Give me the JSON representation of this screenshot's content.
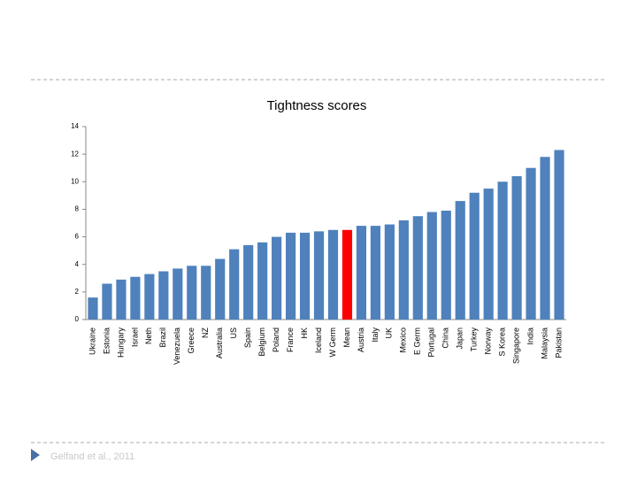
{
  "chart_data": {
    "type": "bar",
    "title": "Tightness scores",
    "categories": [
      "Ukraine",
      "Estonia",
      "Hungary",
      "Israel",
      "Neth",
      "Brazil",
      "Venezuela",
      "Greece",
      "NZ",
      "Australia",
      "US",
      "Spain",
      "Belgium",
      "Poland",
      "France",
      "HK",
      "Iceland",
      "W Germ",
      "Mean",
      "Austria",
      "Italy",
      "UK",
      "Mexico",
      "E Germ",
      "Portugal",
      "China",
      "Japan",
      "Turkey",
      "Norway",
      "S Korea",
      "Singapore",
      "India",
      "Malaysia",
      "Pakistan"
    ],
    "values": [
      1.6,
      2.6,
      2.9,
      3.1,
      3.3,
      3.5,
      3.7,
      3.9,
      3.9,
      4.4,
      5.1,
      5.4,
      5.6,
      6.0,
      6.3,
      6.3,
      6.4,
      6.5,
      6.5,
      6.8,
      6.8,
      6.9,
      7.2,
      7.5,
      7.8,
      7.9,
      8.6,
      9.2,
      9.5,
      10.0,
      10.4,
      11.0,
      11.8,
      12.3
    ],
    "colors": [
      "#4f81bd",
      "#4f81bd",
      "#4f81bd",
      "#4f81bd",
      "#4f81bd",
      "#4f81bd",
      "#4f81bd",
      "#4f81bd",
      "#4f81bd",
      "#4f81bd",
      "#4f81bd",
      "#4f81bd",
      "#4f81bd",
      "#4f81bd",
      "#4f81bd",
      "#4f81bd",
      "#4f81bd",
      "#4f81bd",
      "#ff0000",
      "#4f81bd",
      "#4f81bd",
      "#4f81bd",
      "#4f81bd",
      "#4f81bd",
      "#4f81bd",
      "#4f81bd",
      "#4f81bd",
      "#4f81bd",
      "#4f81bd",
      "#4f81bd",
      "#4f81bd",
      "#4f81bd",
      "#4f81bd",
      "#4f81bd"
    ],
    "ylim": [
      0,
      14
    ],
    "yticks": [
      0,
      2,
      4,
      6,
      8,
      10,
      12,
      14
    ],
    "grid": false
  },
  "footer": "Gelfand et al., 2011"
}
